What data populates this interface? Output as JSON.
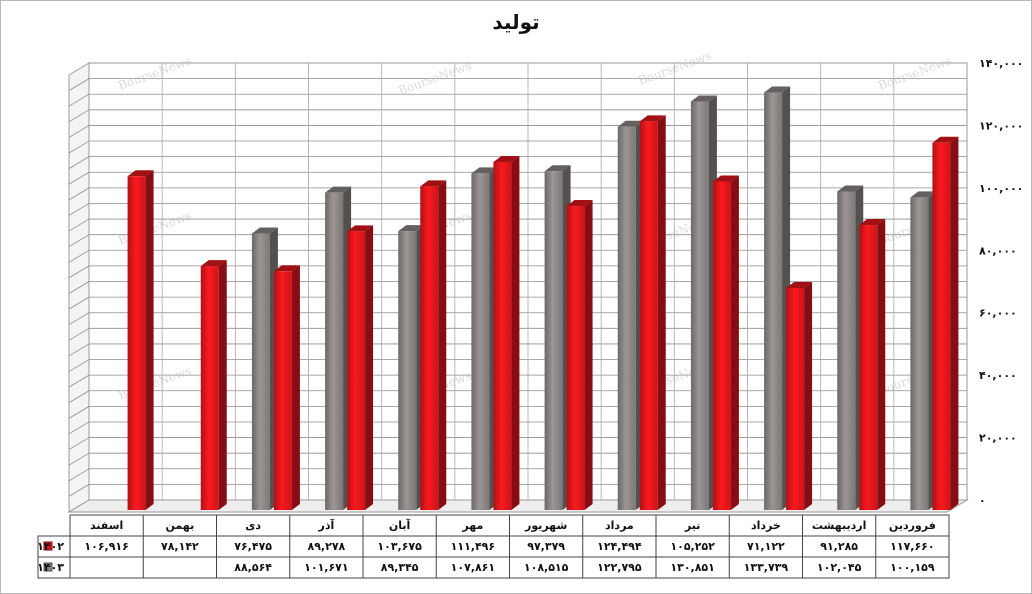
{
  "chart_data": {
    "type": "bar",
    "title": "تولید",
    "categories": [
      "اسفند",
      "بهمن",
      "دی",
      "آذر",
      "آبان",
      "مهر",
      "شهریور",
      "مرداد",
      "تیر",
      "خرداد",
      "اردیبهشت",
      "فروردین"
    ],
    "series": [
      {
        "name": "۱۴۰۲",
        "color": "#e0161c",
        "values": [
          106916,
          78142,
          76475,
          89278,
          103675,
          111496,
          97379,
          124494,
          105252,
          71122,
          91285,
          117660
        ],
        "labels": [
          "۱۰۶,۹۱۶",
          "۷۸,۱۴۲",
          "۷۶,۴۷۵",
          "۸۹,۲۷۸",
          "۱۰۳,۶۷۵",
          "۱۱۱,۴۹۶",
          "۹۷,۳۷۹",
          "۱۲۴,۴۹۴",
          "۱۰۵,۲۵۲",
          "۷۱,۱۲۲",
          "۹۱,۲۸۵",
          "۱۱۷,۶۶۰"
        ]
      },
      {
        "name": "۱۴۰۳",
        "color": "#8a8584",
        "values": [
          null,
          null,
          88564,
          101671,
          89345,
          107861,
          108515,
          122795,
          130851,
          133739,
          102045,
          100159
        ],
        "labels": [
          "",
          "",
          "۸۸,۵۶۴",
          "۱۰۱,۶۷۱",
          "۸۹,۳۴۵",
          "۱۰۷,۸۶۱",
          "۱۰۸,۵۱۵",
          "۱۲۲,۷۹۵",
          "۱۳۰,۸۵۱",
          "۱۳۳,۷۳۹",
          "۱۰۲,۰۴۵",
          "۱۰۰,۱۵۹"
        ]
      }
    ],
    "ylim": [
      0,
      140000
    ],
    "yticks": [
      0,
      20000,
      40000,
      60000,
      80000,
      100000,
      120000,
      140000
    ],
    "ytick_labels": [
      "۰",
      "۲۰,۰۰۰",
      "۴۰,۰۰۰",
      "۶۰,۰۰۰",
      "۸۰,۰۰۰",
      "۱۰۰,۰۰۰",
      "۱۲۰,۰۰۰",
      "۱۴۰,۰۰۰"
    ],
    "grid": true,
    "y_axis_side": "right",
    "legend_placement": "data-table-left",
    "watermark": "BourseNews"
  }
}
